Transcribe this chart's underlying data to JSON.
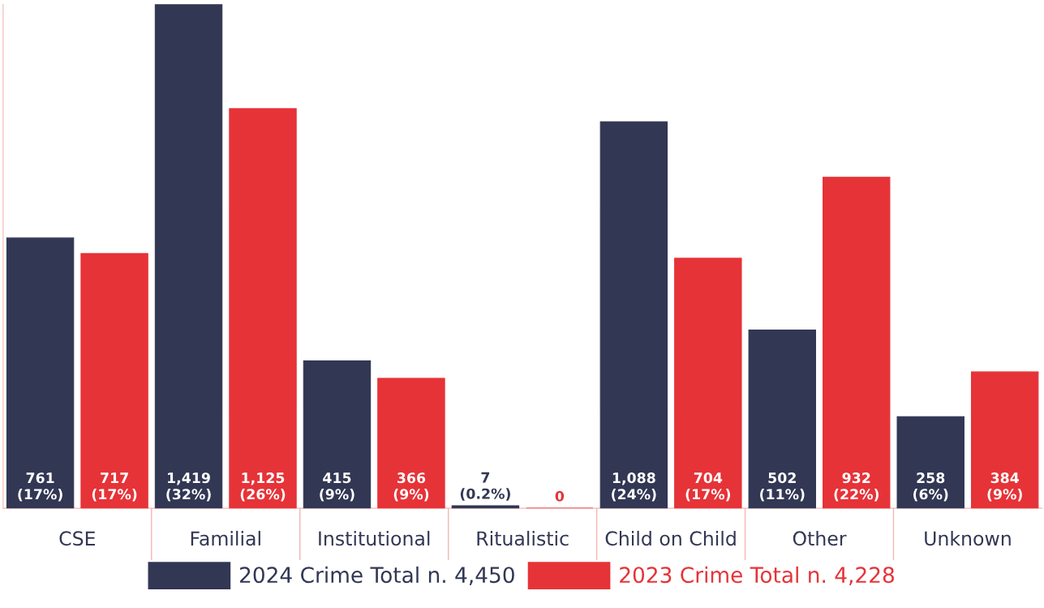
{
  "chart_data": {
    "type": "bar",
    "categories": [
      "CSE",
      "Familial",
      "Institutional",
      "Ritualistic",
      "Child on Child",
      "Other",
      "Unknown"
    ],
    "series": [
      {
        "name": "2024 Crime Total n. 4,450",
        "color": "#323754",
        "values": [
          761,
          1419,
          415,
          7,
          1088,
          502,
          258
        ],
        "value_labels": [
          "761\n(17%)",
          "1,419\n(32%)",
          "415\n(9%)",
          "7\n(0.2%)",
          "1,088\n(24%)",
          "502\n(11%)",
          "258\n(6%)"
        ]
      },
      {
        "name": "2023 Crime Total n. 4,228",
        "color": "#e63338",
        "values": [
          717,
          1125,
          366,
          0,
          704,
          932,
          384
        ],
        "value_labels": [
          "717\n(17%)",
          "1,125\n(26%)",
          "366\n(9%)",
          "0",
          "704\n(17%)",
          "932\n(22%)",
          "384\n(9%)"
        ]
      }
    ],
    "legend": "bottom",
    "grid": false
  }
}
